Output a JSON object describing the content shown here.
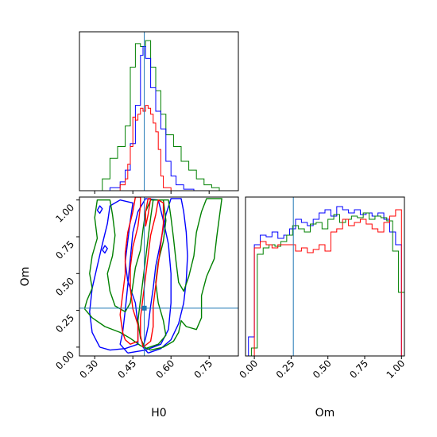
{
  "chart_data": {
    "type": "corner",
    "parameters": [
      "H0",
      "Om"
    ],
    "truth": {
      "H0": 0.495,
      "Om": 0.265
    },
    "colors": {
      "truth": "#1f77b4",
      "blue": "#0000ff",
      "red": "#ff0000",
      "green": "#008000"
    },
    "axes": {
      "H0": {
        "label": "H0",
        "range": [
          0.24,
          0.865
        ],
        "ticks": [
          0.3,
          0.45,
          0.6,
          0.75
        ],
        "tick_labels": [
          "0.30",
          "0.45",
          "0.60",
          "0.75"
        ]
      },
      "Om": {
        "label": "Om",
        "range": [
          -0.06,
          1.02
        ],
        "ticks": [
          0.0,
          0.25,
          0.5,
          0.75,
          1.0
        ],
        "tick_labels": [
          "0.00",
          "0.25",
          "0.50",
          "0.75",
          "1.00"
        ]
      }
    },
    "hist_H0": {
      "ylim": [
        0,
        1.08
      ],
      "series": [
        {
          "color": "green",
          "edges": [
            0.33,
            0.36,
            0.39,
            0.42,
            0.44,
            0.46,
            0.48,
            0.5,
            0.52,
            0.54,
            0.56,
            0.58,
            0.61,
            0.64,
            0.67,
            0.7,
            0.73,
            0.76,
            0.79,
            0.82
          ],
          "values": [
            0.08,
            0.22,
            0.3,
            0.44,
            0.84,
            1.0,
            0.98,
            1.02,
            0.84,
            0.68,
            0.52,
            0.38,
            0.3,
            0.2,
            0.14,
            0.08,
            0.04,
            0.02,
            0.0
          ]
        },
        {
          "color": "blue",
          "edges": [
            0.36,
            0.4,
            0.42,
            0.44,
            0.46,
            0.48,
            0.49,
            0.5,
            0.52,
            0.54,
            0.56,
            0.58,
            0.6,
            0.62,
            0.65,
            0.69
          ],
          "values": [
            0.02,
            0.06,
            0.14,
            0.32,
            0.58,
            0.92,
            0.98,
            0.9,
            0.7,
            0.54,
            0.42,
            0.2,
            0.1,
            0.04,
            0.01
          ]
        },
        {
          "color": "red",
          "edges": [
            0.4,
            0.42,
            0.43,
            0.44,
            0.45,
            0.46,
            0.47,
            0.48,
            0.49,
            0.5,
            0.51,
            0.52,
            0.53,
            0.54,
            0.55,
            0.56,
            0.57,
            0.6
          ],
          "values": [
            0.04,
            0.08,
            0.18,
            0.3,
            0.5,
            0.48,
            0.52,
            0.56,
            0.54,
            0.58,
            0.56,
            0.52,
            0.46,
            0.4,
            0.28,
            0.1,
            0.02
          ]
        }
      ]
    },
    "hist_Om": {
      "ylim": [
        0,
        1.0
      ],
      "series": [
        {
          "color": "blue",
          "edges": [
            -0.04,
            0.0,
            0.04,
            0.08,
            0.12,
            0.16,
            0.2,
            0.24,
            0.28,
            0.32,
            0.36,
            0.4,
            0.44,
            0.48,
            0.52,
            0.56,
            0.6,
            0.64,
            0.68,
            0.72,
            0.76,
            0.8,
            0.84,
            0.88,
            0.92,
            0.96,
            1.0
          ],
          "values": [
            0.12,
            0.7,
            0.76,
            0.75,
            0.78,
            0.74,
            0.76,
            0.8,
            0.86,
            0.84,
            0.82,
            0.86,
            0.9,
            0.92,
            0.88,
            0.94,
            0.92,
            0.9,
            0.92,
            0.89,
            0.9,
            0.88,
            0.9,
            0.86,
            0.78,
            0.7
          ]
        },
        {
          "color": "green",
          "edges": [
            -0.02,
            0.02,
            0.06,
            0.1,
            0.14,
            0.18,
            0.22,
            0.26,
            0.3,
            0.34,
            0.38,
            0.42,
            0.46,
            0.5,
            0.54,
            0.58,
            0.62,
            0.66,
            0.7,
            0.74,
            0.78,
            0.82,
            0.86,
            0.9,
            0.94,
            0.98,
            1.02
          ],
          "values": [
            0.05,
            0.64,
            0.68,
            0.7,
            0.69,
            0.72,
            0.76,
            0.82,
            0.8,
            0.78,
            0.83,
            0.84,
            0.8,
            0.86,
            0.89,
            0.84,
            0.86,
            0.88,
            0.87,
            0.9,
            0.86,
            0.88,
            0.87,
            0.85,
            0.66,
            0.4
          ]
        },
        {
          "color": "red",
          "edges": [
            0.0,
            0.04,
            0.08,
            0.12,
            0.16,
            0.2,
            0.24,
            0.28,
            0.32,
            0.36,
            0.4,
            0.44,
            0.48,
            0.52,
            0.56,
            0.6,
            0.64,
            0.68,
            0.72,
            0.76,
            0.8,
            0.84,
            0.88,
            0.92,
            0.96,
            1.0
          ],
          "values": [
            0.68,
            0.72,
            0.7,
            0.68,
            0.7,
            0.7,
            0.7,
            0.66,
            0.68,
            0.65,
            0.67,
            0.7,
            0.66,
            0.78,
            0.8,
            0.86,
            0.82,
            0.84,
            0.86,
            0.83,
            0.8,
            0.78,
            0.84,
            0.88,
            0.92
          ]
        }
      ]
    },
    "contours": [
      {
        "color": "blue",
        "points": [
          [
            0.51,
            -0.04
          ],
          [
            0.56,
            -0.01
          ],
          [
            0.6,
            0.05
          ],
          [
            0.63,
            0.16
          ],
          [
            0.65,
            0.3
          ],
          [
            0.66,
            0.45
          ],
          [
            0.665,
            0.62
          ],
          [
            0.66,
            0.78
          ],
          [
            0.65,
            0.92
          ],
          [
            0.64,
            1.01
          ],
          [
            0.6,
            1.01
          ],
          [
            0.58,
            0.9
          ],
          [
            0.56,
            0.72
          ],
          [
            0.54,
            0.55
          ],
          [
            0.53,
            0.4
          ],
          [
            0.52,
            0.28
          ],
          [
            0.51,
            0.14
          ],
          [
            0.5,
            0.06
          ],
          [
            0.49,
            0.0
          ],
          [
            0.51,
            -0.04
          ]
        ]
      },
      {
        "color": "blue",
        "points": [
          [
            0.43,
            -0.04
          ],
          [
            0.5,
            -0.02
          ],
          [
            0.56,
            0.02
          ],
          [
            0.59,
            0.12
          ],
          [
            0.6,
            0.3
          ],
          [
            0.6,
            0.5
          ],
          [
            0.59,
            0.7
          ],
          [
            0.57,
            0.86
          ],
          [
            0.55,
            1.0
          ],
          [
            0.5,
            1.01
          ],
          [
            0.47,
            0.92
          ],
          [
            0.45,
            0.78
          ],
          [
            0.44,
            0.6
          ],
          [
            0.43,
            0.42
          ],
          [
            0.42,
            0.25
          ],
          [
            0.41,
            0.1
          ],
          [
            0.4,
            0.02
          ],
          [
            0.43,
            -0.04
          ]
        ]
      },
      {
        "color": "blue",
        "points": [
          [
            0.32,
            0.0
          ],
          [
            0.36,
            -0.02
          ],
          [
            0.42,
            -0.01
          ],
          [
            0.47,
            0.02
          ],
          [
            0.47,
            0.15
          ],
          [
            0.46,
            0.3
          ],
          [
            0.43,
            0.45
          ],
          [
            0.42,
            0.58
          ],
          [
            0.43,
            0.72
          ],
          [
            0.44,
            0.86
          ],
          [
            0.45,
            0.98
          ],
          [
            0.4,
            1.0
          ],
          [
            0.36,
            0.96
          ],
          [
            0.35,
            0.84
          ],
          [
            0.33,
            0.7
          ],
          [
            0.31,
            0.55
          ],
          [
            0.29,
            0.4
          ],
          [
            0.28,
            0.24
          ],
          [
            0.29,
            0.1
          ],
          [
            0.32,
            0.0
          ]
        ]
      },
      {
        "color": "blue",
        "points": [
          [
            0.31,
            0.93
          ],
          [
            0.32,
            0.96
          ],
          [
            0.33,
            0.94
          ],
          [
            0.32,
            0.91
          ],
          [
            0.31,
            0.93
          ]
        ]
      },
      {
        "color": "blue",
        "points": [
          [
            0.33,
            0.66
          ],
          [
            0.34,
            0.69
          ],
          [
            0.35,
            0.67
          ],
          [
            0.34,
            0.64
          ],
          [
            0.33,
            0.66
          ]
        ]
      },
      {
        "color": "green",
        "points": [
          [
            0.26,
            0.26
          ],
          [
            0.29,
            0.2
          ],
          [
            0.34,
            0.14
          ],
          [
            0.4,
            0.1
          ],
          [
            0.44,
            0.06
          ],
          [
            0.48,
            0.01
          ],
          [
            0.52,
            -0.02
          ],
          [
            0.57,
            0.0
          ],
          [
            0.61,
            0.04
          ],
          [
            0.63,
            0.1
          ],
          [
            0.64,
            0.18
          ],
          [
            0.66,
            0.14
          ],
          [
            0.7,
            0.12
          ],
          [
            0.72,
            0.2
          ],
          [
            0.72,
            0.35
          ],
          [
            0.74,
            0.48
          ],
          [
            0.77,
            0.6
          ],
          [
            0.78,
            0.75
          ],
          [
            0.79,
            0.88
          ],
          [
            0.8,
            1.01
          ],
          [
            0.74,
            1.01
          ],
          [
            0.72,
            0.92
          ],
          [
            0.7,
            0.78
          ],
          [
            0.69,
            0.62
          ],
          [
            0.67,
            0.48
          ],
          [
            0.65,
            0.38
          ],
          [
            0.63,
            0.44
          ],
          [
            0.62,
            0.58
          ],
          [
            0.61,
            0.74
          ],
          [
            0.6,
            0.88
          ],
          [
            0.59,
            1.0
          ],
          [
            0.52,
            1.0
          ],
          [
            0.5,
            0.92
          ],
          [
            0.49,
            0.8
          ],
          [
            0.48,
            0.66
          ],
          [
            0.46,
            0.54
          ],
          [
            0.45,
            0.42
          ],
          [
            0.44,
            0.3
          ],
          [
            0.42,
            0.24
          ],
          [
            0.38,
            0.28
          ],
          [
            0.36,
            0.38
          ],
          [
            0.35,
            0.5
          ],
          [
            0.37,
            0.62
          ],
          [
            0.38,
            0.76
          ],
          [
            0.37,
            0.9
          ],
          [
            0.36,
            1.0
          ],
          [
            0.31,
            1.0
          ],
          [
            0.3,
            0.88
          ],
          [
            0.31,
            0.74
          ],
          [
            0.29,
            0.62
          ],
          [
            0.28,
            0.5
          ],
          [
            0.29,
            0.4
          ],
          [
            0.27,
            0.32
          ],
          [
            0.26,
            0.26
          ]
        ]
      },
      {
        "color": "green",
        "points": [
          [
            0.5,
            -0.01
          ],
          [
            0.55,
            0.02
          ],
          [
            0.58,
            0.08
          ],
          [
            0.57,
            0.18
          ],
          [
            0.55,
            0.3
          ],
          [
            0.54,
            0.44
          ],
          [
            0.55,
            0.58
          ],
          [
            0.57,
            0.72
          ],
          [
            0.58,
            0.86
          ],
          [
            0.57,
            1.0
          ],
          [
            0.53,
            1.0
          ],
          [
            0.52,
            0.88
          ],
          [
            0.51,
            0.74
          ],
          [
            0.5,
            0.6
          ],
          [
            0.49,
            0.46
          ],
          [
            0.48,
            0.32
          ],
          [
            0.47,
            0.18
          ],
          [
            0.48,
            0.06
          ],
          [
            0.5,
            -0.01
          ]
        ]
      },
      {
        "color": "red",
        "points": [
          [
            0.42,
            0.05
          ],
          [
            0.44,
            0.02
          ],
          [
            0.47,
            0.04
          ],
          [
            0.47,
            0.15
          ],
          [
            0.45,
            0.26
          ],
          [
            0.44,
            0.4
          ],
          [
            0.44,
            0.54
          ],
          [
            0.45,
            0.68
          ],
          [
            0.47,
            0.82
          ],
          [
            0.48,
            0.96
          ],
          [
            0.48,
            1.02
          ],
          [
            0.46,
            1.02
          ],
          [
            0.45,
            0.92
          ],
          [
            0.43,
            0.78
          ],
          [
            0.42,
            0.64
          ],
          [
            0.42,
            0.5
          ],
          [
            0.41,
            0.36
          ],
          [
            0.4,
            0.22
          ],
          [
            0.41,
            0.1
          ],
          [
            0.42,
            0.05
          ]
        ]
      },
      {
        "color": "red",
        "points": [
          [
            0.49,
            0.0
          ],
          [
            0.52,
            0.04
          ],
          [
            0.53,
            0.14
          ],
          [
            0.53,
            0.28
          ],
          [
            0.54,
            0.42
          ],
          [
            0.55,
            0.56
          ],
          [
            0.56,
            0.7
          ],
          [
            0.57,
            0.84
          ],
          [
            0.57,
            0.98
          ],
          [
            0.55,
            1.0
          ],
          [
            0.54,
            0.9
          ],
          [
            0.52,
            0.76
          ],
          [
            0.51,
            0.62
          ],
          [
            0.5,
            0.48
          ],
          [
            0.49,
            0.34
          ],
          [
            0.48,
            0.2
          ],
          [
            0.48,
            0.08
          ],
          [
            0.49,
            0.0
          ]
        ]
      },
      {
        "color": "red",
        "points": [
          [
            0.5,
            0.82
          ],
          [
            0.51,
            0.9
          ],
          [
            0.52,
            1.01
          ],
          [
            0.51,
            1.01
          ],
          [
            0.5,
            0.92
          ],
          [
            0.5,
            0.82
          ]
        ]
      }
    ]
  }
}
